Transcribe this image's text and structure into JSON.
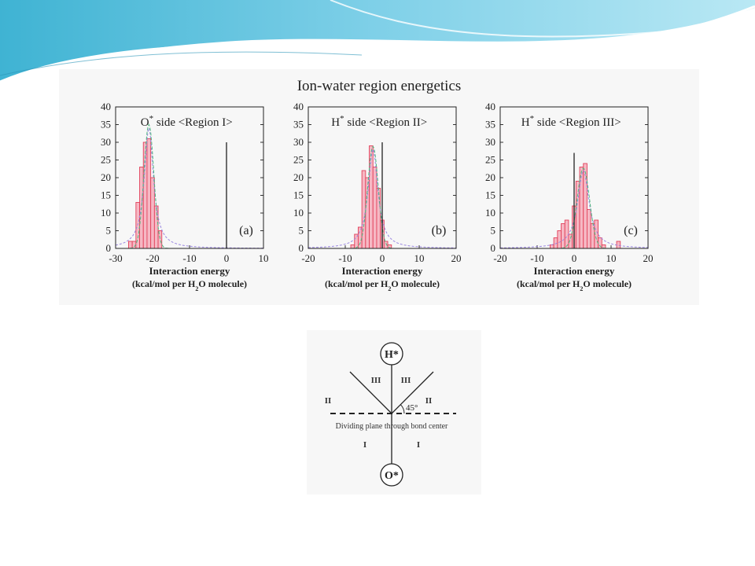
{
  "figure_title": "Ion-water region energetics",
  "theme": {
    "swoosh_dark": "#3fb3d3",
    "swoosh_light": "#a9dff0",
    "bar_fill": "#f6b8c4",
    "bar_stroke": "#e2405a",
    "fit_color": "#4fb77f",
    "gauss_color": "#9a86e0"
  },
  "chart_data": [
    {
      "type": "bar",
      "panel_label": "(a)",
      "title": "O* side <Region I>",
      "xlabel": "Interaction energy",
      "xunits": "(kcal/mol per H2O molecule)",
      "xlim": [
        -30,
        10
      ],
      "ylim": [
        0,
        40
      ],
      "xticks": [
        -30,
        -20,
        -10,
        0,
        10
      ],
      "yticks": [
        0,
        5,
        10,
        15,
        20,
        25,
        30,
        35,
        40
      ],
      "vline_x": 0,
      "vline_top": 30,
      "bin_width": 1,
      "bins": [
        {
          "x": -26,
          "y": 2
        },
        {
          "x": -25,
          "y": 2
        },
        {
          "x": -24,
          "y": 13
        },
        {
          "x": -23,
          "y": 23
        },
        {
          "x": -22,
          "y": 30
        },
        {
          "x": -21,
          "y": 31
        },
        {
          "x": -20,
          "y": 20
        },
        {
          "x": -19,
          "y": 12
        },
        {
          "x": -18,
          "y": 5
        }
      ],
      "fit_peak": 34,
      "fit_center": -21,
      "fit_width": 1.5
    },
    {
      "type": "bar",
      "panel_label": "(b)",
      "title": "H* side <Region II>",
      "xlabel": "Interaction energy",
      "xunits": "(kcal/mol per H2O molecule)",
      "xlim": [
        -20,
        20
      ],
      "ylim": [
        0,
        40
      ],
      "xticks": [
        -20,
        -10,
        0,
        10,
        20
      ],
      "yticks": [
        0,
        5,
        10,
        15,
        20,
        25,
        30,
        35,
        40
      ],
      "vline_x": 0,
      "vline_top": 30,
      "bin_width": 1,
      "bins": [
        {
          "x": -8,
          "y": 1
        },
        {
          "x": -7,
          "y": 4
        },
        {
          "x": -6,
          "y": 6
        },
        {
          "x": -5,
          "y": 22
        },
        {
          "x": -4,
          "y": 20
        },
        {
          "x": -3,
          "y": 29
        },
        {
          "x": -2,
          "y": 23
        },
        {
          "x": -1,
          "y": 17
        },
        {
          "x": 0,
          "y": 8
        },
        {
          "x": 1,
          "y": 2
        },
        {
          "x": 2,
          "y": 1
        }
      ],
      "fit_peak": 28,
      "fit_center": -2.5,
      "fit_width": 1.6
    },
    {
      "type": "bar",
      "panel_label": "(c)",
      "title": "H* side <Region III>",
      "xlabel": "Interaction energy",
      "xunits": "(kcal/mol per H2O molecule)",
      "xlim": [
        -20,
        20
      ],
      "ylim": [
        0,
        40
      ],
      "xticks": [
        -20,
        -10,
        0,
        10,
        20
      ],
      "yticks": [
        0,
        5,
        10,
        15,
        20,
        25,
        30,
        35,
        40
      ],
      "vline_x": 0,
      "vline_top": 27,
      "bin_width": 1,
      "bins": [
        {
          "x": -6,
          "y": 1
        },
        {
          "x": -5,
          "y": 3
        },
        {
          "x": -4,
          "y": 5
        },
        {
          "x": -3,
          "y": 7
        },
        {
          "x": -2,
          "y": 8
        },
        {
          "x": -1,
          "y": 4
        },
        {
          "x": 0,
          "y": 12
        },
        {
          "x": 1,
          "y": 19
        },
        {
          "x": 2,
          "y": 23
        },
        {
          "x": 3,
          "y": 24
        },
        {
          "x": 4,
          "y": 11
        },
        {
          "x": 5,
          "y": 7
        },
        {
          "x": 6,
          "y": 8
        },
        {
          "x": 7,
          "y": 3
        },
        {
          "x": 8,
          "y": 1
        },
        {
          "x": 12,
          "y": 2
        }
      ],
      "fit_peak": 22,
      "fit_center": 2.5,
      "fit_width": 1.9
    }
  ],
  "diagram": {
    "top_atom": "H*",
    "bottom_atom": "O*",
    "plane_label": "Dividing plane through bond center",
    "angle_label": "45°",
    "region_labels": [
      "III",
      "III",
      "II",
      "II",
      "I",
      "I"
    ]
  }
}
